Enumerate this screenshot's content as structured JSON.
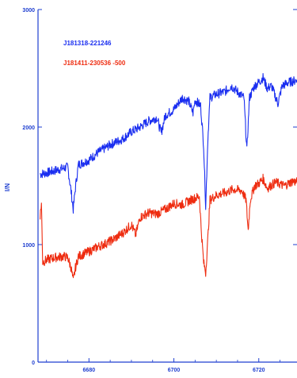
{
  "chart_data": {
    "type": "line",
    "title": "",
    "xlabel": "",
    "ylabel": "I/N",
    "xlim": [
      6668,
      6729
    ],
    "ylim": [
      0,
      3000
    ],
    "x_ticks": [
      6680,
      6700,
      6720
    ],
    "y_ticks": [
      0,
      1000,
      2000,
      3000
    ],
    "axis_color": "#1f3fd0",
    "series": [
      {
        "name": "J181318-221246",
        "color": "#1a2ef0",
        "points": [
          [
            6668.5,
            1600
          ],
          [
            6670,
            1610
          ],
          [
            6672,
            1630
          ],
          [
            6674,
            1650
          ],
          [
            6675,
            1660
          ],
          [
            6675.8,
            1450
          ],
          [
            6676.3,
            1300
          ],
          [
            6676.8,
            1480
          ],
          [
            6677.5,
            1680
          ],
          [
            6680,
            1720
          ],
          [
            6682,
            1780
          ],
          [
            6685,
            1850
          ],
          [
            6688,
            1900
          ],
          [
            6690,
            1960
          ],
          [
            6692,
            2000
          ],
          [
            6694,
            2050
          ],
          [
            6696,
            2080
          ],
          [
            6697,
            1950
          ],
          [
            6698,
            2100
          ],
          [
            6700,
            2150
          ],
          [
            6701,
            2200
          ],
          [
            6702,
            2250
          ],
          [
            6703.5,
            2220
          ],
          [
            6704.5,
            2120
          ],
          [
            6705,
            2230
          ],
          [
            6706.3,
            2180
          ],
          [
            6707,
            1850
          ],
          [
            6707.5,
            1320
          ],
          [
            6708,
            1900
          ],
          [
            6708.5,
            2250
          ],
          [
            6710,
            2280
          ],
          [
            6712,
            2300
          ],
          [
            6713.5,
            2350
          ],
          [
            6715,
            2300
          ],
          [
            6716.5,
            2250
          ],
          [
            6717.2,
            1800
          ],
          [
            6717.8,
            2250
          ],
          [
            6719,
            2350
          ],
          [
            6720,
            2380
          ],
          [
            6721,
            2420
          ],
          [
            6722,
            2330
          ],
          [
            6723,
            2350
          ],
          [
            6724.5,
            2200
          ],
          [
            6725.5,
            2350
          ],
          [
            6727,
            2380
          ],
          [
            6729,
            2400
          ]
        ]
      },
      {
        "name": "J181411-230536 -500",
        "color": "#ee2c10",
        "points": [
          [
            6668.5,
            1250
          ],
          [
            6668.8,
            1350
          ],
          [
            6669.1,
            850
          ],
          [
            6670,
            870
          ],
          [
            6672,
            890
          ],
          [
            6674,
            900
          ],
          [
            6675,
            890
          ],
          [
            6675.8,
            800
          ],
          [
            6676.3,
            690
          ],
          [
            6676.8,
            800
          ],
          [
            6677.5,
            900
          ],
          [
            6680,
            940
          ],
          [
            6682,
            980
          ],
          [
            6684,
            1010
          ],
          [
            6686,
            1050
          ],
          [
            6688,
            1100
          ],
          [
            6690,
            1170
          ],
          [
            6691,
            1080
          ],
          [
            6692,
            1230
          ],
          [
            6694,
            1270
          ],
          [
            6696,
            1260
          ],
          [
            6698,
            1300
          ],
          [
            6700,
            1350
          ],
          [
            6702,
            1340
          ],
          [
            6704,
            1380
          ],
          [
            6706,
            1410
          ],
          [
            6706.5,
            1100
          ],
          [
            6707,
            850
          ],
          [
            6707.5,
            760
          ],
          [
            6708,
            1050
          ],
          [
            6708.5,
            1380
          ],
          [
            6710,
            1420
          ],
          [
            6712,
            1440
          ],
          [
            6714,
            1470
          ],
          [
            6716,
            1460
          ],
          [
            6717,
            1380
          ],
          [
            6717.5,
            1120
          ],
          [
            6718,
            1380
          ],
          [
            6719,
            1500
          ],
          [
            6720,
            1520
          ],
          [
            6721,
            1560
          ],
          [
            6722,
            1480
          ],
          [
            6724,
            1530
          ],
          [
            6726,
            1500
          ],
          [
            6728,
            1540
          ],
          [
            6729,
            1530
          ]
        ]
      }
    ]
  }
}
